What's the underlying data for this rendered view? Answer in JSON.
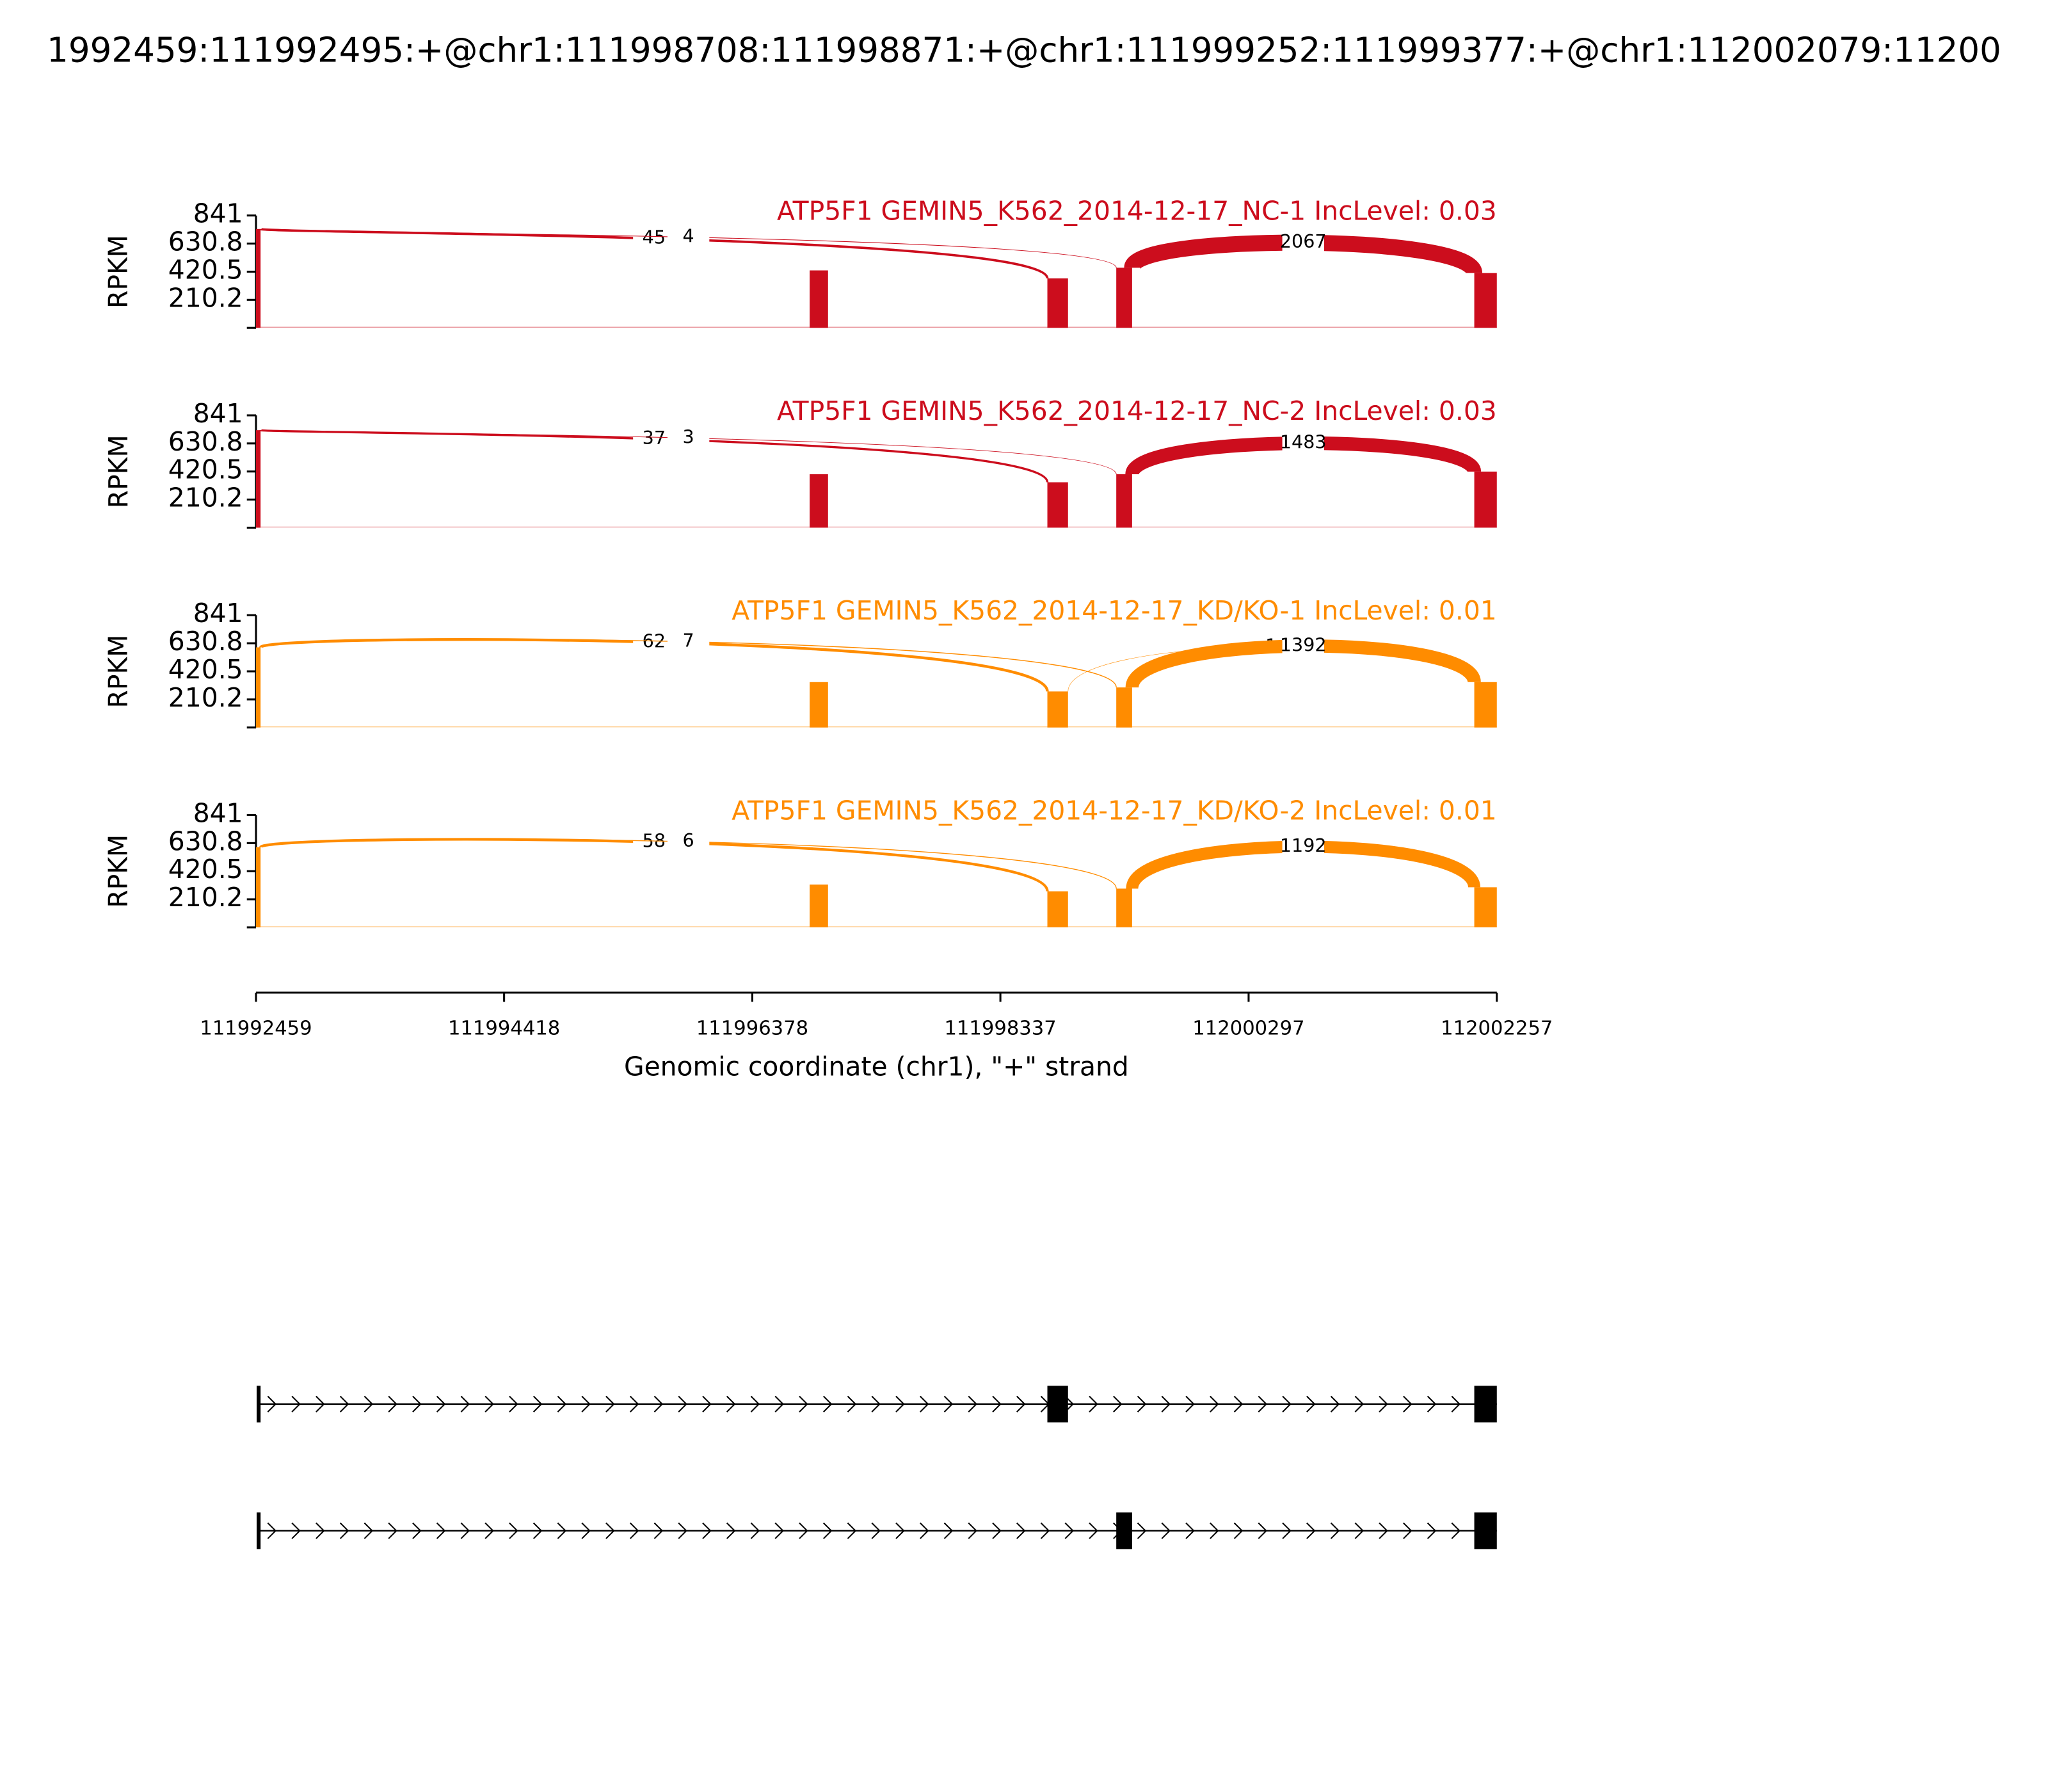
{
  "figure": {
    "title": "1992459:111992495:+@chr1:111998708:111998871:+@chr1:111999252:111999377:+@chr1:112002079:11200",
    "xlabel": "Genomic coordinate (chr1), \"+\" strand",
    "xlim": [
      111992459,
      112002257
    ],
    "xticks": [
      111992459,
      111994418,
      111996378,
      111998337,
      112000297,
      112002257
    ],
    "exons": {
      "starts": [
        111992459,
        111996831,
        111998708,
        111999252,
        112002079
      ],
      "ends": [
        111992495,
        111996976,
        111998871,
        111999377,
        112002257
      ]
    }
  },
  "chart_data": [
    {
      "type": "sashimi",
      "title": "ATP5F1 GEMIN5_K562_2014-12-17_NC-1 IncLevel: 0.03",
      "ylabel": "RPKM",
      "color": "#cc0d1d",
      "ylim": [
        0,
        841
      ],
      "yticks": [
        210.2,
        420.5,
        630.8,
        841
      ],
      "coverage": [
        740,
        430,
        370,
        450,
        410
      ],
      "junctions": {
        "starts": [
          111992495,
          111992495,
          111999377
        ],
        "ends": [
          111998708,
          111999252,
          112002079
        ],
        "values": [
          45,
          4,
          2067
        ]
      }
    },
    {
      "type": "sashimi",
      "title": "ATP5F1 GEMIN5_K562_2014-12-17_NC-2 IncLevel: 0.03",
      "ylabel": "RPKM",
      "color": "#cc0d1d",
      "ylim": [
        0,
        841
      ],
      "yticks": [
        210.2,
        420.5,
        630.8,
        841
      ],
      "coverage": [
        730,
        400,
        340,
        400,
        420
      ],
      "junctions": {
        "starts": [
          111992495,
          111992495,
          111999377
        ],
        "ends": [
          111998708,
          111999252,
          112002079
        ],
        "values": [
          37,
          3,
          1483
        ]
      }
    },
    {
      "type": "sashimi",
      "title": "ATP5F1 GEMIN5_K562_2014-12-17_KD/KO-1 IncLevel: 0.01",
      "ylabel": "RPKM",
      "color": "#ff8c00",
      "ylim": [
        0,
        841
      ],
      "yticks": [
        210.2,
        420.5,
        630.8,
        841
      ],
      "coverage": [
        600,
        340,
        270,
        300,
        340
      ],
      "junctions": {
        "starts": [
          111992495,
          111992495,
          111998871,
          111999377
        ],
        "ends": [
          111998708,
          111999252,
          112002079,
          112002079
        ],
        "values": [
          62,
          7,
          1,
          1392
        ]
      }
    },
    {
      "type": "sashimi",
      "title": "ATP5F1 GEMIN5_K562_2014-12-17_KD/KO-2 IncLevel: 0.01",
      "ylabel": "RPKM",
      "color": "#ff8c00",
      "ylim": [
        0,
        841
      ],
      "yticks": [
        210.2,
        420.5,
        630.8,
        841
      ],
      "coverage": [
        600,
        320,
        270,
        290,
        300
      ],
      "junctions": {
        "starts": [
          111992495,
          111992495,
          111999377
        ],
        "ends": [
          111998708,
          111999252,
          112002079
        ],
        "values": [
          58,
          6,
          1192
        ]
      }
    }
  ]
}
